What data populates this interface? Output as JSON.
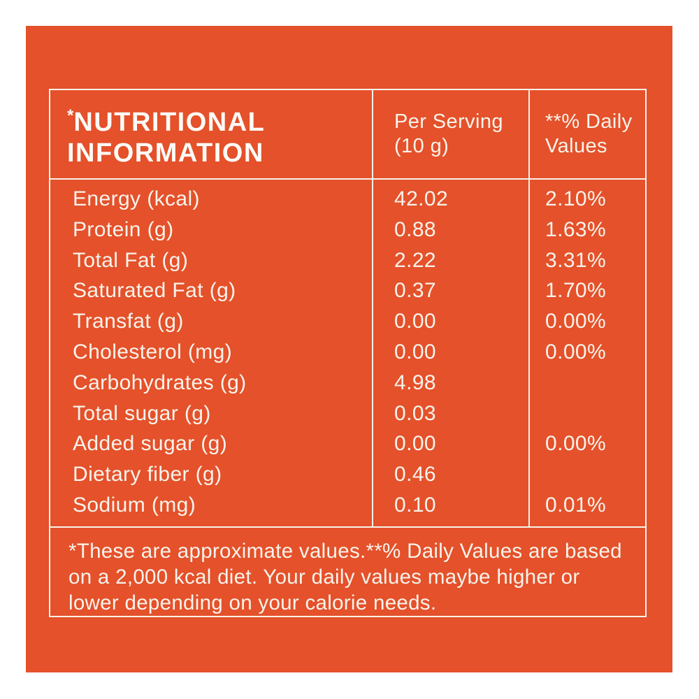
{
  "colors": {
    "page_background": "#ffffff",
    "panel_background": "#e4512a",
    "table_lines": "#f8f3ec",
    "text": "#f8f3ec"
  },
  "table": {
    "title": {
      "asterisk": "*",
      "line1": "NUTRITIONAL",
      "line2": "INFORMATION"
    },
    "columns": {
      "per_serving_line1": "Per Serving",
      "per_serving_line2": "(10 g)",
      "daily_values_line1": "**% Daily",
      "daily_values_line2": "Values"
    },
    "rows": [
      {
        "label": "Energy (kcal)",
        "per_serving": "42.02",
        "daily_value": "2.10%"
      },
      {
        "label": "Protein (g)",
        "per_serving": "0.88",
        "daily_value": "1.63%"
      },
      {
        "label": "Total Fat (g)",
        "per_serving": "2.22",
        "daily_value": "3.31%"
      },
      {
        "label": "Saturated Fat (g)",
        "per_serving": "0.37",
        "daily_value": "1.70%"
      },
      {
        "label": "Transfat (g)",
        "per_serving": "0.00",
        "daily_value": "0.00%"
      },
      {
        "label": "Cholesterol (mg)",
        "per_serving": "0.00",
        "daily_value": "0.00%"
      },
      {
        "label": "Carbohydrates (g)",
        "per_serving": "4.98",
        "daily_value": ""
      },
      {
        "label": "Total sugar (g)",
        "per_serving": "0.03",
        "daily_value": ""
      },
      {
        "label": "Added sugar (g)",
        "per_serving": "0.00",
        "daily_value": "0.00%"
      },
      {
        "label": "Dietary fiber (g)",
        "per_serving": "0.46",
        "daily_value": ""
      },
      {
        "label": "Sodium (mg)",
        "per_serving": "0.10",
        "daily_value": "0.01%"
      }
    ],
    "footnote": {
      "line1": "*These are approximate values.**% Daily Values are based",
      "line2": "on a 2,000 kcal diet. Your daily values maybe higher or",
      "line3": "lower depending on your calorie needs."
    }
  }
}
